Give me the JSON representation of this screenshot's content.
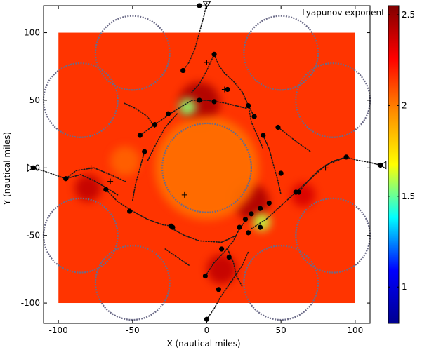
{
  "chart_data": {
    "type": "heatmap",
    "xlabel": "X (nautical miles)",
    "ylabel": "Y (nautical miles)",
    "xlim": [
      -110,
      110
    ],
    "ylim": [
      -115,
      120
    ],
    "x_ticks": [
      "-100",
      "-50",
      "0",
      "50",
      "100"
    ],
    "y_ticks": [
      "100",
      "50",
      "0",
      "-50",
      "-100"
    ],
    "x_tick_values": [
      -100,
      -50,
      0,
      50,
      100
    ],
    "y_tick_values": [
      100,
      50,
      0,
      -50,
      -100
    ],
    "field_extent": [
      -100,
      100,
      -100,
      100
    ],
    "colorbar": {
      "title": "Lyapunov exponent",
      "min": 0.8,
      "max": 2.55,
      "ticks": [
        "2.5",
        "2",
        "1.5",
        "1"
      ],
      "tick_values": [
        2.5,
        2.0,
        1.5,
        1.0
      ],
      "colors": [
        "#00008f",
        "#0000ff",
        "#00ffff",
        "#ffff00",
        "#ff8c00",
        "#ff0000",
        "#800000"
      ]
    },
    "background_level": 2.15,
    "hotspots": [
      {
        "x": -5,
        "y": 48,
        "r": 14,
        "value": 2.45
      },
      {
        "x": -13,
        "y": 45,
        "r": 6,
        "value": 1.55
      },
      {
        "x": -80,
        "y": -15,
        "r": 9,
        "value": 2.4
      },
      {
        "x": 30,
        "y": -25,
        "r": 12,
        "value": 2.45
      },
      {
        "x": 37,
        "y": -40,
        "r": 6,
        "value": 1.6
      },
      {
        "x": 10,
        "y": -75,
        "r": 10,
        "value": 2.4
      },
      {
        "x": 65,
        "y": -20,
        "r": 8,
        "value": 2.35
      },
      {
        "x": 0,
        "y": 0,
        "r": 35,
        "value": 2.02
      },
      {
        "x": -55,
        "y": 5,
        "r": 10,
        "value": 2.05
      }
    ],
    "circles": [
      {
        "cx": 0,
        "cy": 0,
        "r": 30
      },
      {
        "cx": -50,
        "cy": 85,
        "r": 25
      },
      {
        "cx": 50,
        "cy": 85,
        "r": 25
      },
      {
        "cx": -85,
        "cy": 50,
        "r": 25
      },
      {
        "cx": 85,
        "cy": 50,
        "r": 25
      },
      {
        "cx": -85,
        "cy": -50,
        "r": 25
      },
      {
        "cx": 85,
        "cy": -50,
        "r": 25
      },
      {
        "cx": -50,
        "cy": -85,
        "r": 25
      },
      {
        "cx": 50,
        "cy": -85,
        "r": 25
      }
    ],
    "trajectories": [
      [
        [
          -117,
          0
        ],
        [
          -108,
          -3
        ],
        [
          -95,
          -8
        ],
        [
          -85,
          -5
        ],
        [
          -75,
          -10
        ],
        [
          -60,
          -20
        ]
      ],
      [
        [
          -95,
          -8
        ],
        [
          -88,
          -2
        ],
        [
          -76,
          0
        ],
        [
          -65,
          -5
        ],
        [
          -55,
          -10
        ]
      ],
      [
        [
          -68,
          -16
        ],
        [
          -60,
          -25
        ],
        [
          -50,
          -32
        ],
        [
          -40,
          -38
        ],
        [
          -30,
          -42
        ],
        [
          -24,
          -43
        ]
      ],
      [
        [
          117,
          2
        ],
        [
          110,
          4
        ],
        [
          100,
          6
        ],
        [
          94,
          8
        ],
        [
          85,
          5
        ],
        [
          75,
          -2
        ],
        [
          68,
          -10
        ],
        [
          62,
          -18
        ]
      ],
      [
        [
          94,
          8
        ],
        [
          80,
          2
        ],
        [
          70,
          -8
        ],
        [
          60,
          -18
        ],
        [
          50,
          -28
        ],
        [
          40,
          -38
        ],
        [
          30,
          -45
        ]
      ],
      [
        [
          0,
          122
        ],
        [
          -2,
          112
        ],
        [
          -4,
          104
        ],
        [
          -6,
          96
        ],
        [
          -8,
          88
        ],
        [
          -12,
          78
        ],
        [
          -16,
          72
        ]
      ],
      [
        [
          5,
          84
        ],
        [
          8,
          76
        ],
        [
          12,
          70
        ],
        [
          18,
          64
        ],
        [
          24,
          56
        ],
        [
          28,
          46
        ],
        [
          32,
          38
        ]
      ],
      [
        [
          5,
          84
        ],
        [
          0,
          72
        ],
        [
          -5,
          62
        ],
        [
          -10,
          56
        ]
      ],
      [
        [
          0,
          -112
        ],
        [
          5,
          -104
        ],
        [
          9,
          -96
        ],
        [
          14,
          -88
        ],
        [
          19,
          -80
        ],
        [
          24,
          -72
        ],
        [
          28,
          -62
        ]
      ],
      [
        [
          -1,
          -80
        ],
        [
          5,
          -70
        ],
        [
          12,
          -62
        ],
        [
          18,
          -54
        ],
        [
          22,
          -45
        ],
        [
          27,
          -38
        ]
      ],
      [
        [
          -45,
          24
        ],
        [
          -35,
          32
        ],
        [
          -22,
          42
        ],
        [
          -10,
          50
        ],
        [
          0,
          50
        ],
        [
          12,
          48
        ],
        [
          27,
          44
        ]
      ],
      [
        [
          -42,
          12
        ],
        [
          -45,
          0
        ],
        [
          -48,
          -12
        ],
        [
          -50,
          -24
        ]
      ],
      [
        [
          38,
          24
        ],
        [
          42,
          14
        ],
        [
          45,
          2
        ],
        [
          48,
          -10
        ],
        [
          50,
          -20
        ]
      ],
      [
        [
          -35,
          30
        ],
        [
          -40,
          38
        ],
        [
          -48,
          44
        ],
        [
          -56,
          48
        ]
      ],
      [
        [
          48,
          30
        ],
        [
          55,
          24
        ],
        [
          62,
          18
        ],
        [
          70,
          12
        ]
      ],
      [
        [
          -25,
          -44
        ],
        [
          -15,
          -50
        ],
        [
          -5,
          -54
        ],
        [
          10,
          -55
        ],
        [
          20,
          -50
        ]
      ],
      [
        [
          -20,
          40
        ],
        [
          -28,
          30
        ],
        [
          -34,
          18
        ],
        [
          -40,
          5
        ]
      ],
      [
        [
          28,
          46
        ],
        [
          30,
          34
        ],
        [
          34,
          24
        ],
        [
          38,
          14
        ]
      ],
      [
        [
          14,
          -60
        ],
        [
          18,
          -70
        ],
        [
          20,
          -80
        ],
        [
          24,
          -88
        ]
      ],
      [
        [
          -12,
          -72
        ],
        [
          -20,
          -66
        ],
        [
          -28,
          -60
        ]
      ]
    ],
    "start_points": [
      {
        "x": -117,
        "y": 0,
        "kind": "triangle-right"
      },
      {
        "x": 117,
        "y": 2,
        "kind": "triangle-left"
      },
      {
        "x": 0,
        "y": 122,
        "kind": "triangle-down"
      }
    ],
    "dots": [
      [
        -5,
        120
      ],
      [
        5,
        84
      ],
      [
        -16,
        72
      ],
      [
        14,
        58
      ],
      [
        28,
        46
      ],
      [
        32,
        38
      ],
      [
        -26,
        40
      ],
      [
        -35,
        32
      ],
      [
        -45,
        24
      ],
      [
        -42,
        12
      ],
      [
        -95,
        -8
      ],
      [
        -68,
        -16
      ],
      [
        -52,
        -32
      ],
      [
        -24,
        -43
      ],
      [
        -23,
        -44
      ],
      [
        5,
        49
      ],
      [
        -5,
        50
      ],
      [
        38,
        24
      ],
      [
        48,
        30
      ],
      [
        94,
        8
      ],
      [
        117,
        2
      ],
      [
        -117,
        0
      ],
      [
        50,
        -4
      ],
      [
        62,
        -18
      ],
      [
        60,
        -18
      ],
      [
        42,
        -26
      ],
      [
        36,
        -30
      ],
      [
        30,
        -34
      ],
      [
        26,
        -38
      ],
      [
        22,
        -44
      ],
      [
        28,
        -48
      ],
      [
        10,
        -60
      ],
      [
        15,
        -66
      ],
      [
        -1,
        -80
      ],
      [
        8,
        -90
      ],
      [
        0,
        -112
      ],
      [
        36,
        -44
      ]
    ],
    "plus_markers": [
      [
        0,
        78
      ],
      [
        -78,
        0
      ],
      [
        80,
        0
      ],
      [
        -65,
        -10
      ],
      [
        12,
        58
      ],
      [
        -15,
        -20
      ]
    ]
  }
}
